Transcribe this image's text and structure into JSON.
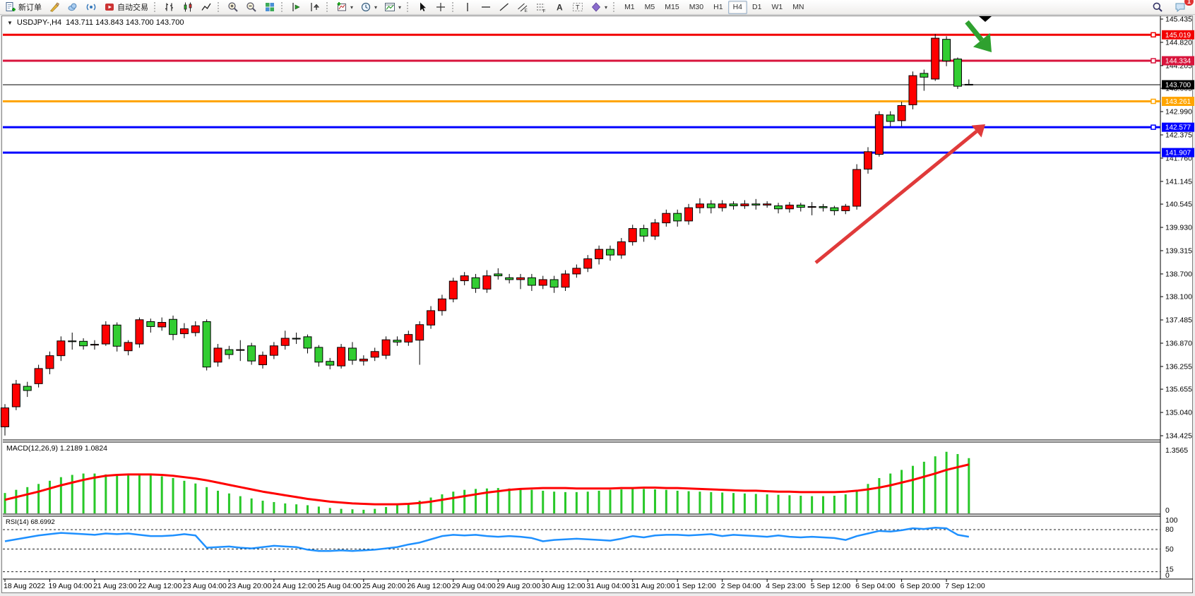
{
  "window": {
    "symbol_period": "USDJPY-,H4",
    "ohlc_readout": "143.711 143.843 143.700 143.700"
  },
  "toolbar": {
    "groups": [
      {
        "name": "trade",
        "items": [
          {
            "name": "new-order-button",
            "icon": "new-order-icon",
            "label": "新订单"
          },
          {
            "name": "metaeditor-button",
            "icon": "pencil-icon"
          },
          {
            "name": "community-button",
            "icon": "cloud-icon"
          },
          {
            "name": "signals-button",
            "icon": "signal-icon"
          },
          {
            "name": "autotrading-button",
            "icon": "autotrading-icon",
            "label": "自动交易"
          }
        ]
      },
      {
        "name": "chart-type",
        "items": [
          {
            "name": "bar-chart-button",
            "icon": "bar-chart-icon"
          },
          {
            "name": "candlestick-chart-button",
            "icon": "candlestick-chart-icon"
          },
          {
            "name": "line-chart-button",
            "icon": "line-chart-icon"
          }
        ]
      },
      {
        "name": "zoom",
        "items": [
          {
            "name": "zoom-in-button",
            "icon": "zoom-in-icon"
          },
          {
            "name": "zoom-out-button",
            "icon": "zoom-out-icon"
          },
          {
            "name": "tile-windows-button",
            "icon": "tile-windows-icon"
          }
        ]
      },
      {
        "name": "scroll",
        "items": [
          {
            "name": "auto-scroll-button",
            "icon": "auto-scroll-icon"
          },
          {
            "name": "chart-shift-button",
            "icon": "chart-shift-icon"
          }
        ]
      },
      {
        "name": "new-objects",
        "items": [
          {
            "name": "new-chart-button",
            "icon": "new-chart-icon",
            "dropdown": true
          },
          {
            "name": "periods-button",
            "icon": "clock-icon",
            "dropdown": true
          },
          {
            "name": "templates-button",
            "icon": "template-icon",
            "dropdown": true
          }
        ]
      },
      {
        "name": "pointer",
        "items": [
          {
            "name": "cursor-button",
            "icon": "cursor-icon"
          },
          {
            "name": "crosshair-button",
            "icon": "crosshair-icon"
          }
        ]
      },
      {
        "name": "drawing",
        "items": [
          {
            "name": "vertical-line-button",
            "icon": "vertical-line-icon"
          },
          {
            "name": "horizontal-line-button",
            "icon": "horizontal-line-icon"
          },
          {
            "name": "trendline-button",
            "icon": "trendline-icon"
          },
          {
            "name": "equidistant-channel-button",
            "icon": "channel-icon"
          },
          {
            "name": "fibonacci-button",
            "icon": "fibonacci-icon"
          },
          {
            "name": "text-button",
            "icon": "text-icon"
          },
          {
            "name": "text-label-button",
            "icon": "text-label-icon"
          },
          {
            "name": "arrows-button",
            "icon": "shapes-icon",
            "dropdown": true
          }
        ]
      }
    ],
    "timeframes": [
      "M1",
      "M5",
      "M15",
      "M30",
      "H1",
      "H4",
      "D1",
      "W1",
      "MN"
    ],
    "active_timeframe": "H4",
    "notification_count": "1"
  },
  "indicators": {
    "macd_label": "MACD(12,26,9) 1.2189 1.0824",
    "rsi_label": "RSI(14) 68.6992"
  },
  "price_scale_ticks": [
    "145.435",
    "144.820",
    "144.205",
    "143.605",
    "142.990",
    "142.375",
    "141.760",
    "141.145",
    "140.545",
    "139.930",
    "139.315",
    "138.700",
    "138.100",
    "137.485",
    "136.870",
    "136.255",
    "135.655",
    "135.040",
    "134.425"
  ],
  "time_axis_labels": [
    "18 Aug 2022",
    "19 Aug 04:00",
    "21 Aug 23:00",
    "22 Aug 12:00",
    "23 Aug 04:00",
    "23 Aug 20:00",
    "24 Aug 12:00",
    "25 Aug 04:00",
    "25 Aug 20:00",
    "26 Aug 12:00",
    "29 Aug 04:00",
    "29 Aug 20:00",
    "30 Aug 12:00",
    "31 Aug 04:00",
    "31 Aug 20:00",
    "1 Sep 12:00",
    "2 Sep 04:00",
    "4 Sep 23:00",
    "5 Sep 12:00",
    "6 Sep 04:00",
    "6 Sep 20:00",
    "7 Sep 12:00"
  ],
  "chart_data": [
    {
      "type": "candlestick",
      "title": "USDJPY-,H4",
      "bars": 87,
      "ylim": [
        134.425,
        145.435
      ],
      "grid": false,
      "up_color": "#ff0000",
      "down_color": "#32cd32",
      "wick_color": "#000000",
      "open": [
        134.66,
        135.19,
        135.73,
        135.8,
        136.2,
        136.54,
        136.93,
        136.92,
        136.82,
        136.85,
        137.35,
        136.67,
        136.85,
        137.44,
        137.3,
        137.5,
        137.12,
        137.15,
        137.44,
        136.37,
        136.7,
        136.68,
        136.8,
        136.3,
        136.55,
        136.81,
        137.0,
        137.04,
        136.76,
        136.39,
        136.27,
        136.74,
        136.4,
        136.5,
        136.55,
        136.95,
        136.9,
        136.95,
        137.35,
        137.73,
        138.04,
        138.52,
        138.6,
        138.3,
        138.7,
        138.6,
        138.55,
        138.6,
        138.4,
        138.55,
        138.35,
        138.7,
        138.85,
        139.1,
        139.35,
        139.2,
        139.55,
        139.9,
        139.7,
        140.05,
        140.3,
        140.1,
        140.45,
        140.55,
        140.45,
        140.55,
        140.5,
        140.55,
        140.52,
        140.5,
        140.42,
        140.52,
        140.46,
        140.48,
        140.45,
        140.37,
        140.49,
        141.47,
        141.86,
        142.9,
        142.75,
        143.17,
        144.0,
        143.85,
        144.9,
        144.38,
        143.71
      ],
      "high": [
        135.26,
        135.9,
        135.85,
        136.3,
        136.65,
        137.05,
        137.15,
        137.0,
        136.95,
        137.45,
        137.42,
        136.95,
        137.55,
        137.52,
        137.55,
        137.6,
        137.4,
        137.45,
        137.5,
        136.85,
        136.8,
        136.95,
        136.88,
        136.65,
        136.9,
        137.2,
        137.15,
        137.1,
        136.82,
        136.48,
        136.85,
        136.9,
        136.55,
        136.75,
        137.05,
        137.05,
        137.2,
        137.45,
        137.85,
        138.15,
        138.6,
        138.75,
        138.7,
        138.8,
        138.85,
        138.7,
        138.7,
        138.7,
        138.65,
        138.65,
        138.8,
        138.95,
        139.2,
        139.45,
        139.45,
        139.65,
        140.0,
        140.0,
        140.15,
        140.4,
        140.4,
        140.55,
        140.7,
        140.65,
        140.65,
        140.62,
        140.65,
        140.68,
        140.62,
        140.58,
        140.6,
        140.58,
        140.6,
        140.55,
        140.5,
        140.55,
        141.6,
        142.05,
        143.0,
        143.0,
        143.25,
        144.05,
        144.1,
        145.04,
        144.98,
        144.42,
        143.84
      ],
      "low": [
        134.43,
        135.1,
        135.45,
        135.7,
        136.05,
        136.4,
        136.7,
        136.7,
        136.7,
        136.8,
        136.65,
        136.55,
        136.75,
        137.15,
        137.2,
        136.95,
        137.0,
        137.05,
        136.15,
        136.25,
        136.45,
        136.4,
        136.3,
        136.2,
        136.45,
        136.7,
        136.85,
        136.6,
        136.25,
        136.18,
        136.2,
        136.3,
        136.28,
        136.4,
        136.45,
        136.8,
        136.8,
        136.3,
        137.25,
        137.6,
        137.95,
        138.4,
        138.2,
        138.2,
        138.55,
        138.45,
        138.3,
        138.25,
        138.3,
        138.2,
        138.25,
        138.6,
        138.75,
        138.95,
        139.05,
        139.1,
        139.45,
        139.55,
        139.6,
        139.95,
        139.95,
        140.0,
        140.3,
        140.3,
        140.35,
        140.4,
        140.42,
        140.4,
        140.45,
        140.3,
        140.32,
        140.35,
        140.25,
        140.35,
        140.25,
        140.28,
        140.4,
        141.35,
        141.8,
        142.6,
        142.6,
        143.05,
        143.54,
        143.8,
        144.19,
        143.59,
        143.7
      ],
      "close": [
        135.16,
        135.79,
        135.62,
        136.2,
        136.54,
        136.93,
        136.91,
        136.8,
        136.84,
        137.35,
        136.79,
        136.89,
        137.49,
        137.31,
        137.42,
        137.1,
        137.25,
        137.33,
        136.24,
        136.74,
        136.57,
        136.7,
        136.4,
        136.55,
        136.8,
        137.0,
        136.98,
        136.74,
        136.37,
        136.29,
        136.76,
        136.42,
        136.45,
        136.65,
        136.96,
        136.9,
        137.1,
        137.36,
        137.73,
        138.04,
        138.51,
        138.65,
        138.32,
        138.65,
        138.65,
        138.55,
        138.6,
        138.4,
        138.55,
        138.35,
        138.7,
        138.85,
        139.1,
        139.35,
        139.2,
        139.55,
        139.9,
        139.7,
        140.05,
        140.3,
        140.1,
        140.45,
        140.55,
        140.45,
        140.55,
        140.5,
        140.55,
        140.52,
        140.55,
        140.42,
        140.52,
        140.46,
        140.48,
        140.45,
        140.37,
        140.49,
        141.46,
        141.93,
        142.91,
        142.73,
        143.15,
        143.94,
        143.9,
        144.93,
        144.33,
        143.66,
        143.7
      ],
      "h_lines": [
        {
          "price": 145.019,
          "label": "145.019",
          "color": "#f20000",
          "width": 3,
          "handle": true
        },
        {
          "price": 144.334,
          "label": "144.334",
          "color": "#d8143c",
          "width": 3,
          "handle": true
        },
        {
          "price": 143.7,
          "label": "143.700",
          "color": "#000000",
          "width": 1,
          "current": true
        },
        {
          "price": 143.261,
          "label": "143.261",
          "color": "#ffa500",
          "width": 3,
          "handle": true
        },
        {
          "price": 142.577,
          "label": "142.577",
          "color": "#0000ff",
          "width": 3,
          "handle": true
        },
        {
          "price": 141.907,
          "label": "141.907",
          "color": "#0000ff",
          "width": 3,
          "handle": false
        }
      ],
      "annotations": [
        {
          "name": "rally-arrow",
          "type": "arrow",
          "color": "#e03a3a",
          "from": [
            1155,
            372
          ],
          "to": [
            1395,
            176
          ],
          "width": 5
        },
        {
          "name": "reversal-arrow",
          "type": "arrow",
          "color": "#2fa12f",
          "from": [
            1369,
            31
          ],
          "to": [
            1404,
            74
          ],
          "width": 7
        },
        {
          "name": "top-marker",
          "type": "triangle-down",
          "color": "#000000",
          "x": 1395,
          "y": 23
        }
      ]
    },
    {
      "type": "bar",
      "name": "MACD(12,26,9)",
      "current_values": "1.2189 1.0824",
      "ylim": [
        0,
        1.3565
      ],
      "scale_labels": [
        "1.3565",
        "0"
      ],
      "bar_color": "#28c828",
      "signal_color": "#ff0000",
      "histogram": [
        0.45,
        0.52,
        0.58,
        0.65,
        0.72,
        0.8,
        0.85,
        0.88,
        0.88,
        0.86,
        0.84,
        0.84,
        0.85,
        0.84,
        0.82,
        0.78,
        0.72,
        0.66,
        0.58,
        0.5,
        0.44,
        0.38,
        0.33,
        0.28,
        0.25,
        0.22,
        0.2,
        0.18,
        0.15,
        0.12,
        0.1,
        0.09,
        0.08,
        0.1,
        0.14,
        0.18,
        0.22,
        0.28,
        0.35,
        0.42,
        0.48,
        0.52,
        0.54,
        0.55,
        0.56,
        0.55,
        0.54,
        0.52,
        0.5,
        0.48,
        0.47,
        0.47,
        0.48,
        0.5,
        0.52,
        0.53,
        0.54,
        0.54,
        0.53,
        0.52,
        0.5,
        0.49,
        0.48,
        0.47,
        0.46,
        0.45,
        0.44,
        0.43,
        0.42,
        0.41,
        0.4,
        0.39,
        0.38,
        0.38,
        0.39,
        0.42,
        0.52,
        0.65,
        0.78,
        0.88,
        0.96,
        1.05,
        1.14,
        1.26,
        1.36,
        1.31,
        1.22
      ],
      "signal": [
        0.3,
        0.36,
        0.42,
        0.48,
        0.55,
        0.62,
        0.68,
        0.74,
        0.79,
        0.83,
        0.85,
        0.86,
        0.86,
        0.86,
        0.85,
        0.83,
        0.8,
        0.77,
        0.73,
        0.68,
        0.63,
        0.58,
        0.53,
        0.48,
        0.44,
        0.4,
        0.36,
        0.32,
        0.29,
        0.26,
        0.24,
        0.22,
        0.21,
        0.2,
        0.2,
        0.2,
        0.21,
        0.23,
        0.26,
        0.3,
        0.34,
        0.38,
        0.42,
        0.46,
        0.49,
        0.52,
        0.54,
        0.55,
        0.56,
        0.56,
        0.56,
        0.55,
        0.55,
        0.55,
        0.55,
        0.56,
        0.56,
        0.57,
        0.57,
        0.56,
        0.56,
        0.55,
        0.54,
        0.53,
        0.52,
        0.51,
        0.5,
        0.5,
        0.49,
        0.48,
        0.48,
        0.47,
        0.47,
        0.47,
        0.47,
        0.48,
        0.5,
        0.53,
        0.57,
        0.62,
        0.68,
        0.74,
        0.81,
        0.88,
        0.96,
        1.02,
        1.08
      ]
    },
    {
      "type": "line",
      "name": "RSI(14)",
      "current_value": "68.6992",
      "ylim": [
        0,
        100
      ],
      "levels": [
        80,
        50,
        15
      ],
      "scale_labels": [
        "100",
        "80",
        "50",
        "15",
        "0"
      ],
      "line_color": "#1e90ff",
      "values": [
        62,
        65,
        68,
        71,
        73,
        75,
        74,
        73,
        72,
        74,
        73,
        74,
        72,
        70,
        70,
        71,
        73,
        71,
        52,
        53,
        54,
        52,
        51,
        53,
        55,
        54,
        53,
        49,
        47,
        47,
        48,
        47,
        48,
        49,
        51,
        53,
        57,
        60,
        65,
        70,
        72,
        71,
        72,
        70,
        69,
        70,
        69,
        67,
        62,
        64,
        65,
        66,
        65,
        64,
        63,
        66,
        70,
        68,
        71,
        72,
        72,
        71,
        72,
        73,
        70,
        72,
        71,
        70,
        69,
        71,
        69,
        68,
        69,
        68,
        67,
        64,
        70,
        74,
        78,
        77,
        79,
        82,
        81,
        83,
        82,
        72,
        69
      ]
    }
  ]
}
